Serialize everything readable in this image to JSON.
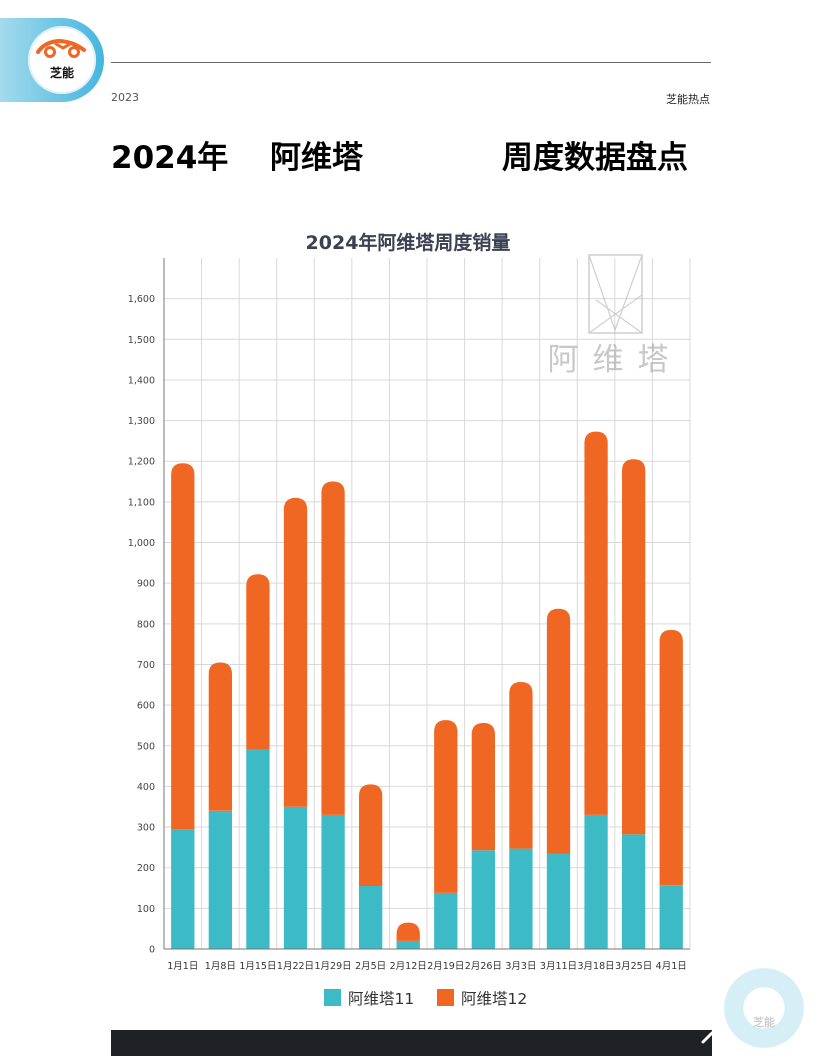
{
  "header": {
    "year": "2023",
    "source": "芝能热点",
    "logo_text": "芝能"
  },
  "title": {
    "part1": "2024年",
    "part2": "阿维塔",
    "part3": "周度数据盘点"
  },
  "colors": {
    "series1": "#3cbac5",
    "series2": "#ef6722",
    "grid": "#d9d9d9",
    "axis": "#777777",
    "title": "#3b4150"
  },
  "watermark": {
    "text": "阿维塔"
  },
  "chart_data": {
    "type": "bar",
    "title": "2024年阿维塔周度销量",
    "categories": [
      "1月1日",
      "1月8日",
      "1月15日",
      "1月22日",
      "1月29日",
      "2月5日",
      "2月12日",
      "2月19日",
      "2月26日",
      "3月3日",
      "3月11日",
      "3月18日",
      "3月25日",
      "4月1日"
    ],
    "series": [
      {
        "name": "阿维塔11",
        "values": [
          295,
          340,
          492,
          350,
          330,
          155,
          20,
          138,
          243,
          247,
          235,
          330,
          282,
          157
        ]
      },
      {
        "name": "阿维塔12",
        "values": [
          900,
          365,
          430,
          760,
          820,
          250,
          45,
          425,
          313,
          410,
          602,
          943,
          923,
          628
        ]
      }
    ],
    "stacked": true,
    "ylim": [
      0,
      1700
    ],
    "yticks": [
      0,
      100,
      200,
      300,
      400,
      500,
      600,
      700,
      800,
      900,
      1000,
      1100,
      1200,
      1300,
      1400,
      1500,
      1600
    ],
    "ytick_labels": [
      "0",
      "100",
      "200",
      "300",
      "400",
      "500",
      "600",
      "700",
      "800",
      "900",
      "1,000",
      "1,100",
      "1,200",
      "1,300",
      "1,400",
      "1,500",
      "1,600"
    ],
    "grid": true,
    "legend_position": "bottom"
  }
}
